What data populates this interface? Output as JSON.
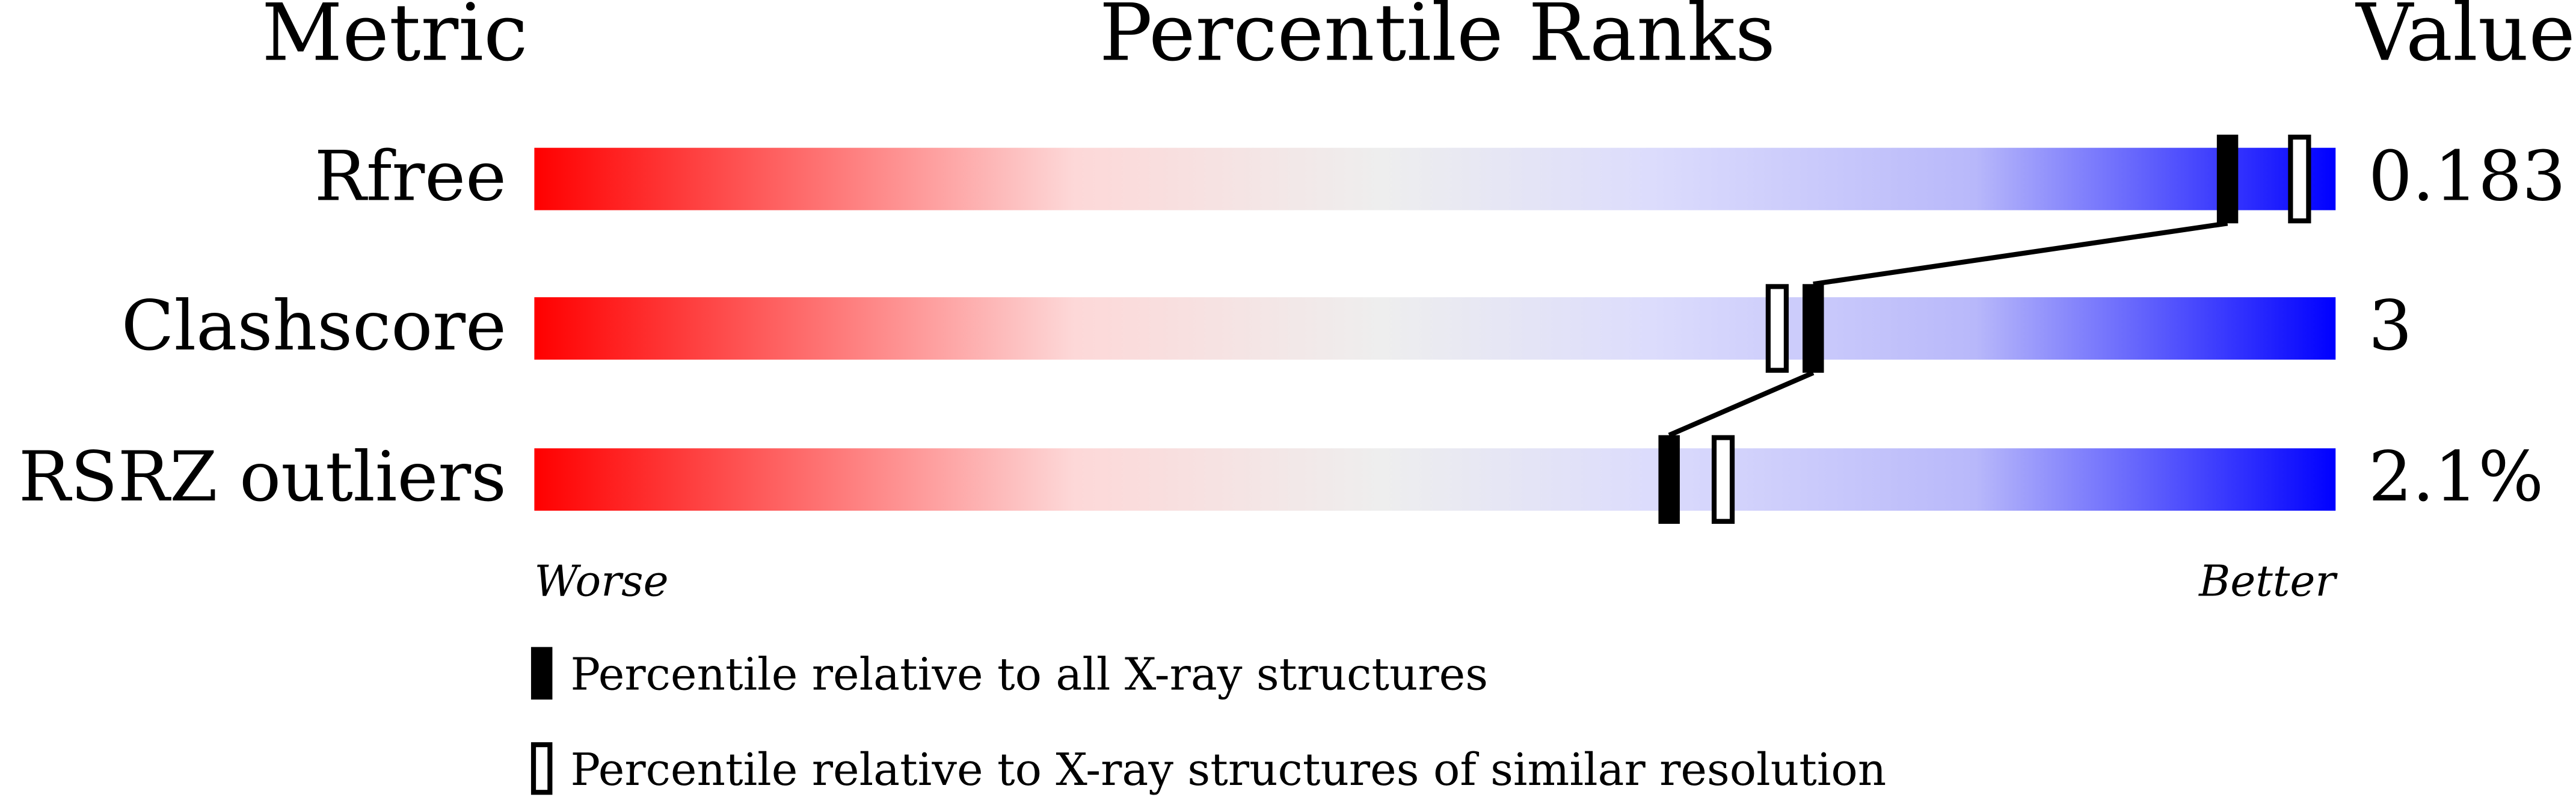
{
  "chart_data": {
    "type": "percentile-slider",
    "title": "Percentile Ranks",
    "metric_header": "Metric",
    "value_header": "Value",
    "categories": [
      "Rfree",
      "Clashscore",
      "RSRZ outliers"
    ],
    "values": [
      0.183,
      3,
      2.1
    ],
    "value_labels": [
      "0.183",
      "3",
      "2.1%"
    ],
    "xlim": [
      0,
      100
    ],
    "worse_label": "Worse",
    "better_label": "Better",
    "series": [
      {
        "name": "Percentile relative to all X-ray structures",
        "color": "#000000",
        "style": "filled",
        "values": [
          94,
          71,
          63
        ]
      },
      {
        "name": "Percentile relative to X-ray structures of similar resolution",
        "color": "#000000",
        "style": "outline",
        "values": [
          98,
          69,
          66
        ]
      }
    ]
  }
}
